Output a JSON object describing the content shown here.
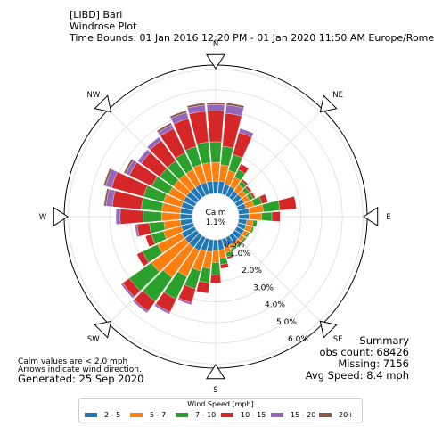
{
  "header": {
    "line1": "[LIBD] Bari",
    "line2": "Windrose Plot",
    "line3": "Time Bounds: 01 Jan 2016 12:20 PM - 01 Jan 2020 11:50 AM Europe/Rome"
  },
  "notes": {
    "calm_note": "Calm values are < 2.0 mph",
    "arrow_note": "Arrows indicate wind direction.",
    "generated": "Generated: 25 Sep 2020"
  },
  "summary": {
    "title": "Summary",
    "obs": "obs count: 68426",
    "missing": "Missing: 7156",
    "avg": "Avg Speed: 8.4 mph"
  },
  "legend": {
    "title": "Wind Speed [mph]",
    "items": [
      {
        "label": "2 - 5",
        "color": "#1f77b4"
      },
      {
        "label": "5 - 7",
        "color": "#ff7f0e"
      },
      {
        "label": "7 - 10",
        "color": "#2ca02c"
      },
      {
        "label": "10 - 15",
        "color": "#d62728"
      },
      {
        "label": "15 - 20",
        "color": "#9467bd"
      },
      {
        "label": "20+",
        "color": "#8c564b"
      }
    ]
  },
  "chart_data": {
    "type": "windrose",
    "calm_label": "Calm",
    "calm_value": "1.1%",
    "directions": [
      "N",
      "NE",
      "E",
      "SE",
      "S",
      "SW",
      "W",
      "NW"
    ],
    "radial_ticks": [
      "0.5%",
      "1.0%",
      "2.0%",
      "3.0%",
      "4.0%",
      "5.0%",
      "6.0%"
    ],
    "series_names": [
      "2 - 5",
      "5 - 7",
      "7 - 10",
      "10 - 15",
      "15 - 20",
      "20+"
    ],
    "sectors": [
      {
        "dir": 0,
        "values": [
          0.6,
          0.9,
          1.0,
          1.5,
          0.3,
          0.1
        ]
      },
      {
        "dir": 10,
        "values": [
          0.6,
          0.8,
          0.9,
          1.6,
          0.4,
          0.1
        ]
      },
      {
        "dir": 20,
        "values": [
          0.5,
          0.7,
          0.8,
          1.1,
          0.2,
          0.0
        ]
      },
      {
        "dir": 30,
        "values": [
          0.5,
          0.5,
          0.4,
          0.3,
          0.0,
          0.0
        ]
      },
      {
        "dir": 40,
        "values": [
          0.4,
          0.4,
          0.2,
          0.1,
          0.0,
          0.0
        ]
      },
      {
        "dir": 50,
        "values": [
          0.4,
          0.3,
          0.2,
          0.1,
          0.0,
          0.0
        ]
      },
      {
        "dir": 60,
        "values": [
          0.4,
          0.3,
          0.2,
          0.1,
          0.0,
          0.0
        ]
      },
      {
        "dir": 70,
        "values": [
          0.4,
          0.4,
          0.4,
          0.3,
          0.0,
          0.0
        ]
      },
      {
        "dir": 80,
        "values": [
          0.5,
          0.7,
          0.8,
          0.8,
          0.0,
          0.0
        ]
      },
      {
        "dir": 90,
        "values": [
          0.5,
          0.6,
          0.5,
          0.4,
          0.0,
          0.0
        ]
      },
      {
        "dir": 100,
        "values": [
          0.4,
          0.3,
          0.2,
          0.0,
          0.0,
          0.0
        ]
      },
      {
        "dir": 110,
        "values": [
          0.4,
          0.3,
          0.1,
          0.0,
          0.0,
          0.0
        ]
      },
      {
        "dir": 120,
        "values": [
          0.4,
          0.2,
          0.1,
          0.0,
          0.0,
          0.0
        ]
      },
      {
        "dir": 130,
        "values": [
          0.4,
          0.2,
          0.1,
          0.0,
          0.0,
          0.0
        ]
      },
      {
        "dir": 140,
        "values": [
          0.4,
          0.2,
          0.1,
          0.0,
          0.0,
          0.0
        ]
      },
      {
        "dir": 150,
        "values": [
          0.4,
          0.2,
          0.1,
          0.0,
          0.0,
          0.0
        ]
      },
      {
        "dir": 160,
        "values": [
          0.4,
          0.3,
          0.2,
          0.1,
          0.0,
          0.0
        ]
      },
      {
        "dir": 170,
        "values": [
          0.5,
          0.4,
          0.3,
          0.2,
          0.0,
          0.0
        ]
      },
      {
        "dir": 180,
        "values": [
          0.5,
          0.6,
          0.6,
          0.4,
          0.0,
          0.0
        ]
      },
      {
        "dir": 190,
        "values": [
          0.6,
          0.8,
          0.7,
          0.5,
          0.0,
          0.0
        ]
      },
      {
        "dir": 200,
        "values": [
          0.6,
          1.0,
          0.9,
          0.7,
          0.1,
          0.0
        ]
      },
      {
        "dir": 210,
        "values": [
          0.7,
          1.4,
          1.2,
          0.7,
          0.1,
          0.0
        ]
      },
      {
        "dir": 220,
        "values": [
          0.7,
          1.8,
          1.4,
          0.6,
          0.1,
          0.0
        ]
      },
      {
        "dir": 230,
        "values": [
          0.7,
          2.0,
          1.3,
          0.4,
          0.1,
          0.0
        ]
      },
      {
        "dir": 240,
        "values": [
          0.7,
          1.3,
          0.8,
          0.3,
          0.0,
          0.0
        ]
      },
      {
        "dir": 250,
        "values": [
          0.6,
          0.9,
          0.6,
          0.3,
          0.0,
          0.0
        ]
      },
      {
        "dir": 260,
        "values": [
          0.6,
          0.8,
          0.7,
          0.6,
          0.1,
          0.0
        ]
      },
      {
        "dir": 270,
        "values": [
          0.6,
          0.9,
          0.9,
          1.1,
          0.2,
          0.0
        ]
      },
      {
        "dir": 280,
        "values": [
          0.6,
          0.9,
          1.0,
          1.4,
          0.3,
          0.1
        ]
      },
      {
        "dir": 290,
        "values": [
          0.6,
          0.9,
          1.0,
          1.6,
          0.3,
          0.1
        ]
      },
      {
        "dir": 300,
        "values": [
          0.6,
          0.8,
          0.9,
          1.2,
          0.2,
          0.1
        ]
      },
      {
        "dir": 310,
        "values": [
          0.6,
          0.8,
          0.8,
          1.1,
          0.2,
          0.0
        ]
      },
      {
        "dir": 320,
        "values": [
          0.6,
          0.8,
          0.8,
          1.2,
          0.2,
          0.0
        ]
      },
      {
        "dir": 330,
        "values": [
          0.6,
          0.8,
          0.9,
          1.3,
          0.2,
          0.1
        ]
      },
      {
        "dir": 340,
        "values": [
          0.6,
          0.9,
          0.9,
          1.4,
          0.3,
          0.1
        ]
      },
      {
        "dir": 350,
        "values": [
          0.6,
          0.9,
          1.0,
          1.5,
          0.3,
          0.1
        ]
      }
    ]
  }
}
